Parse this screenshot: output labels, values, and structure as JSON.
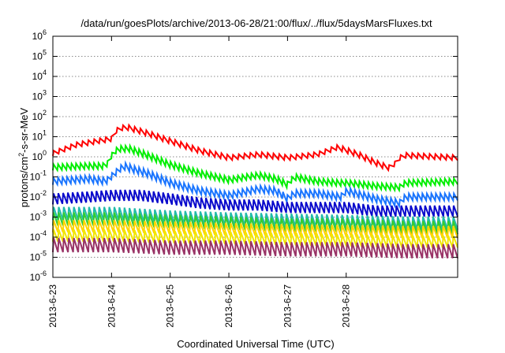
{
  "chart_data": {
    "type": "line",
    "title": "/data/run/goesPlots/archive/2013-06-28/21:00/flux/../flux/5daysMarsFluxes.txt",
    "xlabel": "Coordinated Universal Time (UTC)",
    "ylabel": {
      "prefix": "protons/cm",
      "sup": "2",
      "suffix": "-s-sr-MeV"
    },
    "y_scale": "log",
    "ylim": [
      1e-06,
      1000000.0
    ],
    "y_ticks": [
      {
        "value": 1e-06,
        "base": "10",
        "exp": "-6"
      },
      {
        "value": 1e-05,
        "base": "10",
        "exp": "-5"
      },
      {
        "value": 0.0001,
        "base": "10",
        "exp": "-4"
      },
      {
        "value": 0.001,
        "base": "10",
        "exp": "-3"
      },
      {
        "value": 0.01,
        "base": "10",
        "exp": "-2"
      },
      {
        "value": 0.1,
        "base": "10",
        "exp": "-1"
      },
      {
        "value": 1,
        "base": "10",
        "exp": "0"
      },
      {
        "value": 10,
        "base": "10",
        "exp": "1"
      },
      {
        "value": 100,
        "base": "10",
        "exp": "2"
      },
      {
        "value": 1000,
        "base": "10",
        "exp": "3"
      },
      {
        "value": 10000,
        "base": "10",
        "exp": "4"
      },
      {
        "value": 100000,
        "base": "10",
        "exp": "5"
      },
      {
        "value": 1000000,
        "base": "10",
        "exp": "6"
      }
    ],
    "x_ticks": [
      "2013-6-23",
      "2013-6-24",
      "2013-6-25",
      "2013-6-26",
      "2013-6-27",
      "2013-6-28"
    ],
    "x_range_days": [
      0,
      6.9
    ],
    "grid": {
      "horizontal": "dotted",
      "vertical": false
    },
    "series": [
      {
        "color": "#ff0000",
        "points": [
          [
            0.0,
            1.5
          ],
          [
            0.4,
            4
          ],
          [
            1.0,
            8
          ],
          [
            1.1,
            25
          ],
          [
            1.25,
            30
          ],
          [
            1.6,
            15
          ],
          [
            2.0,
            6
          ],
          [
            2.5,
            2
          ],
          [
            3.0,
            0.9
          ],
          [
            3.5,
            1.3
          ],
          [
            4.0,
            0.9
          ],
          [
            4.5,
            1.3
          ],
          [
            4.85,
            3
          ],
          [
            5.2,
            1.3
          ],
          [
            5.5,
            0.5
          ],
          [
            5.6,
            0.38
          ],
          [
            5.75,
            0.27
          ],
          [
            5.95,
            1.2
          ],
          [
            6.9,
            0.9
          ]
        ],
        "amp": 1.8,
        "teeth": 70
      },
      {
        "color": "#00ee00",
        "points": [
          [
            0.0,
            0.3
          ],
          [
            0.6,
            0.35
          ],
          [
            0.9,
            0.35
          ],
          [
            1.0,
            1.2
          ],
          [
            1.1,
            2.5
          ],
          [
            1.3,
            2.5
          ],
          [
            1.6,
            1.2
          ],
          [
            2.0,
            0.4
          ],
          [
            2.5,
            0.15
          ],
          [
            3.0,
            0.07
          ],
          [
            3.3,
            0.1
          ],
          [
            3.5,
            0.12
          ],
          [
            3.8,
            0.08
          ],
          [
            4.0,
            0.04
          ],
          [
            4.1,
            0.1
          ],
          [
            4.5,
            0.06
          ],
          [
            4.9,
            0.05
          ],
          [
            5.0,
            0.05
          ],
          [
            5.5,
            0.035
          ],
          [
            5.9,
            0.03
          ],
          [
            6.0,
            0.05
          ],
          [
            6.9,
            0.06
          ]
        ],
        "amp": 2.0,
        "teeth": 90
      },
      {
        "color": "#1a75ff",
        "points": [
          [
            0.0,
            0.06
          ],
          [
            0.6,
            0.08
          ],
          [
            0.9,
            0.06
          ],
          [
            1.05,
            0.15
          ],
          [
            1.2,
            0.35
          ],
          [
            1.35,
            0.25
          ],
          [
            1.6,
            0.15
          ],
          [
            2.0,
            0.05
          ],
          [
            2.5,
            0.02
          ],
          [
            3.0,
            0.012
          ],
          [
            3.5,
            0.025
          ],
          [
            3.8,
            0.02
          ],
          [
            4.0,
            0.008
          ],
          [
            4.1,
            0.015
          ],
          [
            4.5,
            0.015
          ],
          [
            4.9,
            0.01
          ],
          [
            5.0,
            0.02
          ],
          [
            5.5,
            0.008
          ],
          [
            5.9,
            0.005
          ],
          [
            6.0,
            0.01
          ],
          [
            6.9,
            0.01
          ]
        ],
        "amp": 2.2,
        "teeth": 90
      },
      {
        "color": "#0a0acc",
        "points": [
          [
            0.0,
            0.008
          ],
          [
            0.6,
            0.01
          ],
          [
            1.0,
            0.012
          ],
          [
            1.5,
            0.012
          ],
          [
            2.0,
            0.008
          ],
          [
            2.5,
            0.005
          ],
          [
            3.0,
            0.004
          ],
          [
            3.5,
            0.004
          ],
          [
            4.0,
            0.003
          ],
          [
            4.5,
            0.003
          ],
          [
            5.0,
            0.003
          ],
          [
            5.5,
            0.002
          ],
          [
            6.0,
            0.002
          ],
          [
            6.9,
            0.002
          ]
        ],
        "amp": 3.5,
        "teeth": 85
      },
      {
        "color": "#22bbaa",
        "points": [
          [
            0.0,
            0.0015
          ],
          [
            1.0,
            0.0015
          ],
          [
            2.0,
            0.001
          ],
          [
            3.0,
            0.0008
          ],
          [
            4.0,
            0.0007
          ],
          [
            5.0,
            0.0006
          ],
          [
            6.0,
            0.0005
          ],
          [
            6.9,
            0.0005
          ]
        ],
        "amp": 4.5,
        "teeth": 80
      },
      {
        "color": "#33cc33",
        "points": [
          [
            0.0,
            0.0008
          ],
          [
            1.0,
            0.0008
          ],
          [
            2.0,
            0.0006
          ],
          [
            3.0,
            0.0005
          ],
          [
            4.0,
            0.0004
          ],
          [
            5.0,
            0.0004
          ],
          [
            6.0,
            0.0003
          ],
          [
            6.9,
            0.0003
          ]
        ],
        "amp": 4.5,
        "teeth": 80
      },
      {
        "color": "#ffd400",
        "points": [
          [
            0.0,
            0.00035
          ],
          [
            1.0,
            0.00035
          ],
          [
            2.0,
            0.0003
          ],
          [
            3.0,
            0.00025
          ],
          [
            4.0,
            0.00022
          ],
          [
            5.0,
            0.0002
          ],
          [
            6.0,
            0.00018
          ],
          [
            6.9,
            0.00018
          ]
        ],
        "amp": 4.0,
        "teeth": 80
      },
      {
        "color": "#f2e600",
        "points": [
          [
            0.0,
            0.00012
          ],
          [
            1.0,
            0.00012
          ],
          [
            2.0,
            0.0001
          ],
          [
            3.0,
            9e-05
          ],
          [
            4.0,
            8e-05
          ],
          [
            5.0,
            7e-05
          ],
          [
            6.0,
            6e-05
          ],
          [
            6.9,
            6e-05
          ]
        ],
        "amp": 4.0,
        "teeth": 80
      },
      {
        "color": "#993366",
        "points": [
          [
            0.0,
            4e-05
          ],
          [
            1.0,
            4e-05
          ],
          [
            2.0,
            3e-05
          ],
          [
            3.0,
            3e-05
          ],
          [
            4.0,
            2.5e-05
          ],
          [
            5.0,
            2.5e-05
          ],
          [
            6.0,
            2e-05
          ],
          [
            6.9,
            2e-05
          ]
        ],
        "amp": 5.0,
        "teeth": 80
      }
    ]
  }
}
